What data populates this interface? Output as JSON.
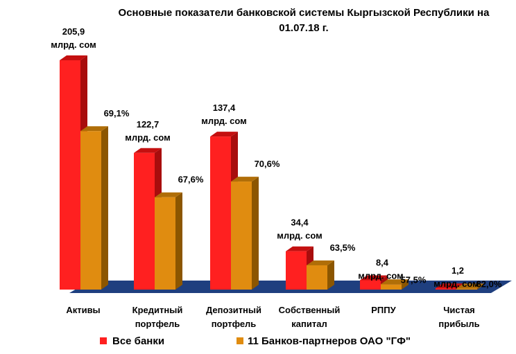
{
  "chart_data": {
    "type": "bar",
    "title_lines": [
      "Основные показатели банковской системы Кыргызской Республики на",
      "01.07.18 г."
    ],
    "categories": [
      [
        "Активы"
      ],
      [
        "Кредитный",
        "портфель"
      ],
      [
        "Депозитный",
        "портфель"
      ],
      [
        "Собственный",
        "капитал"
      ],
      [
        "РППУ"
      ],
      [
        "Чистая",
        "прибыль"
      ]
    ],
    "series": [
      {
        "name": "Все банки",
        "color": "#ff2020",
        "side_color": "#a80d0d",
        "top_color": "#c41010",
        "values": [
          205.9,
          122.7,
          137.4,
          34.4,
          8.4,
          1.2
        ],
        "labels": [
          "205,9",
          "122,7",
          "137,4",
          "34,4",
          "8,4",
          "1,2"
        ],
        "unit_label": "млрд. сом"
      },
      {
        "name": "11 Банков-партнеров ОАО \"ГФ\"",
        "color": "#e08c10",
        "side_color": "#8c5600",
        "top_color": "#b06e08",
        "values": [
          142.3,
          82.9,
          97.0,
          21.8,
          4.8,
          1.0
        ],
        "percent_labels": [
          "69,1%",
          "67,6%",
          "70,6%",
          "63,5%",
          "57,5%",
          "82,0%"
        ]
      }
    ],
    "floor_color": "#1f3f7f",
    "ylim": [
      0,
      215
    ]
  }
}
